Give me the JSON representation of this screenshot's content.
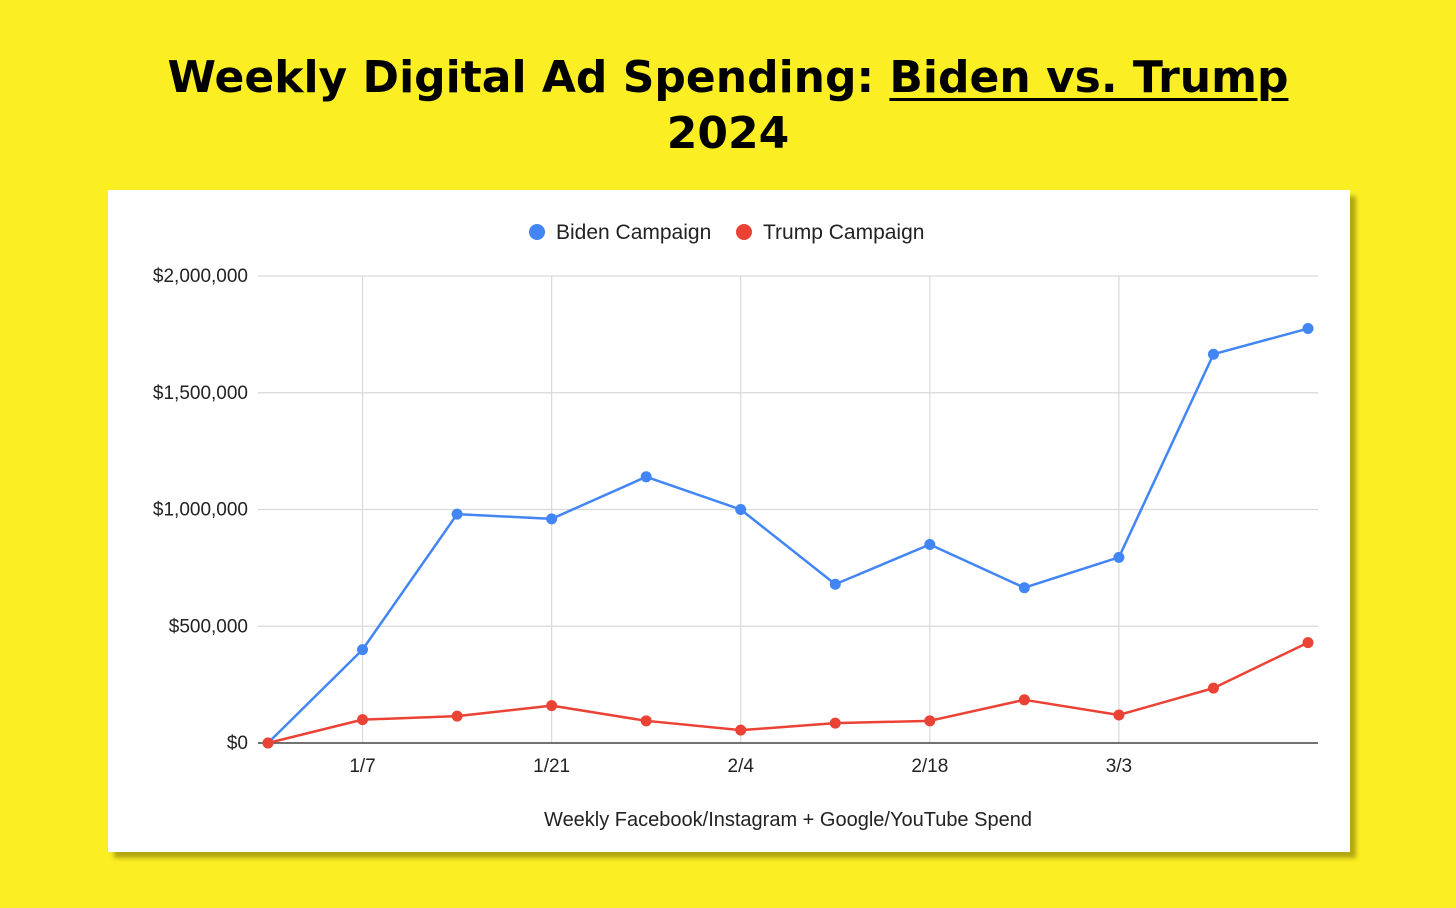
{
  "title": {
    "part1": "Weekly Digital Ad Spending: ",
    "part2": "Biden vs. Trump",
    "part3": "2024"
  },
  "colors": {
    "background": "#fbee23",
    "biden": "#4285f4",
    "trump": "#ea4335"
  },
  "chart_data": {
    "type": "line",
    "title": "Weekly Digital Ad Spending: Biden vs. Trump 2024",
    "xlabel": "Weekly Facebook/Instagram + Google/YouTube Spend",
    "ylabel": "",
    "ylim": [
      0,
      2000000
    ],
    "yticks": [
      {
        "value": 0,
        "label": "$0"
      },
      {
        "value": 500000,
        "label": "$500,000"
      },
      {
        "value": 1000000,
        "label": "$1,000,000"
      },
      {
        "value": 1500000,
        "label": "$1,500,000"
      },
      {
        "value": 2000000,
        "label": "$2,000,000"
      }
    ],
    "x_points": 12,
    "xticks": [
      {
        "index": 1,
        "label": "1/7"
      },
      {
        "index": 3,
        "label": "1/21"
      },
      {
        "index": 5,
        "label": "2/4"
      },
      {
        "index": 7,
        "label": "2/18"
      },
      {
        "index": 9,
        "label": "3/3"
      }
    ],
    "legend_position": "top-center",
    "grid": true,
    "series": [
      {
        "name": "Biden Campaign",
        "color": "#4285f4",
        "values": [
          0,
          400000,
          980000,
          960000,
          1140000,
          1000000,
          680000,
          850000,
          665000,
          795000,
          1665000,
          1775000
        ]
      },
      {
        "name": "Trump Campaign",
        "color": "#ea4335",
        "values": [
          0,
          100000,
          115000,
          160000,
          95000,
          55000,
          85000,
          95000,
          185000,
          120000,
          235000,
          430000
        ]
      }
    ]
  }
}
